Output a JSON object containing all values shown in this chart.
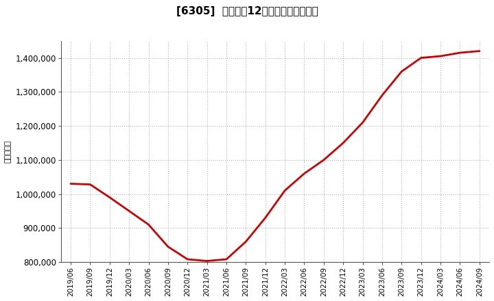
{
  "title": "[6305]  売上高の12か月移動合計の推移",
  "ylabel": "（百万円）",
  "line_color": "#cc0000",
  "background_color": "#ffffff",
  "grid_color": "#aaaaaa",
  "ylim": [
    800000,
    1450000
  ],
  "yticks": [
    800000,
    900000,
    1000000,
    1100000,
    1200000,
    1300000,
    1400000
  ],
  "dates": [
    "2019/06",
    "2019/09",
    "2019/12",
    "2020/03",
    "2020/06",
    "2020/09",
    "2020/12",
    "2021/03",
    "2021/06",
    "2021/09",
    "2021/12",
    "2022/03",
    "2022/06",
    "2022/09",
    "2022/12",
    "2023/03",
    "2023/06",
    "2023/09",
    "2023/12",
    "2024/03",
    "2024/06",
    "2024/09"
  ],
  "values": [
    1030000,
    1028000,
    990000,
    950000,
    910000,
    845000,
    808000,
    803000,
    808000,
    860000,
    930000,
    1010000,
    1060000,
    1100000,
    1150000,
    1210000,
    1290000,
    1360000,
    1400000,
    1405000,
    1415000,
    1420000
  ]
}
